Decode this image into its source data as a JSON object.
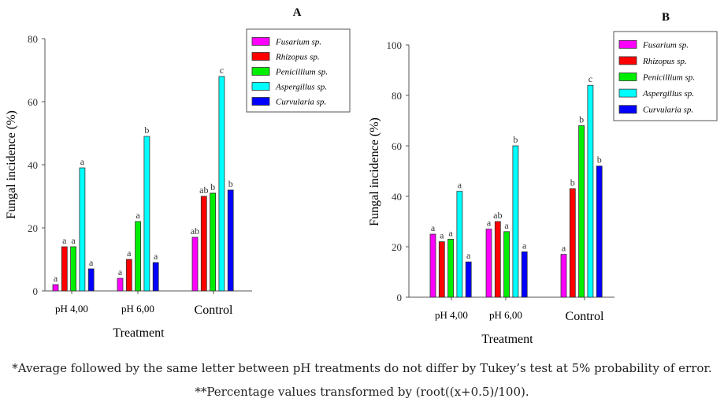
{
  "chart_data": [
    {
      "type": "bar",
      "title": "A",
      "xlabel": "Treatment",
      "ylabel": "Fungal incidence (%)",
      "ylim": [
        0,
        80
      ],
      "yticks": [
        "0",
        "20",
        "40",
        "60",
        "80"
      ],
      "categories": [
        "pH 4,00",
        "pH 6,00",
        "Control"
      ],
      "legend_position": "top-right",
      "series": [
        {
          "name": "Fusarium sp.",
          "color": "#ff00ff",
          "values": [
            2,
            4,
            17
          ],
          "letters": [
            "a",
            "a",
            "ab"
          ]
        },
        {
          "name": "Rhizopus sp.",
          "color": "#ff0000",
          "values": [
            14,
            10,
            30
          ],
          "letters": [
            "a",
            "a",
            "ab"
          ]
        },
        {
          "name": "Penicillium sp.",
          "color": "#00ee00",
          "values": [
            14,
            22,
            31
          ],
          "letters": [
            "a",
            "a",
            "b"
          ]
        },
        {
          "name": "Aspergillus sp.",
          "color": "#00ffff",
          "values": [
            39,
            49,
            68
          ],
          "letters": [
            "a",
            "b",
            "c"
          ]
        },
        {
          "name": "Curvularia sp.",
          "color": "#0000ff",
          "values": [
            7,
            9,
            32
          ],
          "letters": [
            "a",
            "a",
            "b"
          ]
        }
      ]
    },
    {
      "type": "bar",
      "title": "B",
      "xlabel": "Treatment",
      "ylabel": "Fungal incidence (%)",
      "ylim": [
        0,
        100
      ],
      "yticks": [
        "0",
        "20",
        "40",
        "60",
        "80",
        "100"
      ],
      "categories": [
        "pH 4,00",
        "pH 6,00",
        "Control"
      ],
      "legend_position": "top-right",
      "series": [
        {
          "name": "Fusarium sp.",
          "color": "#ff00ff",
          "values": [
            25,
            27,
            17
          ],
          "letters": [
            "a",
            "a",
            "a"
          ]
        },
        {
          "name": "Rhizopus sp.",
          "color": "#ff0000",
          "values": [
            22,
            30,
            43
          ],
          "letters": [
            "a",
            "ab",
            "b"
          ]
        },
        {
          "name": "Penicillium sp.",
          "color": "#00ee00",
          "values": [
            23,
            26,
            68
          ],
          "letters": [
            "a",
            "a",
            "b"
          ]
        },
        {
          "name": "Aspergillus sp.",
          "color": "#00ffff",
          "values": [
            42,
            60,
            84
          ],
          "letters": [
            "a",
            "b",
            "c"
          ]
        },
        {
          "name": "Curvularia sp.",
          "color": "#0000ff",
          "values": [
            14,
            18,
            52
          ],
          "letters": [
            "a",
            "a",
            "b"
          ]
        }
      ]
    }
  ],
  "footnotes": [
    "*Average followed by the same letter between pH treatments do not differ by Tukey’s test at 5% probability of error.",
    "**Percentage values transformed by (root((x+0.5)/100)."
  ]
}
